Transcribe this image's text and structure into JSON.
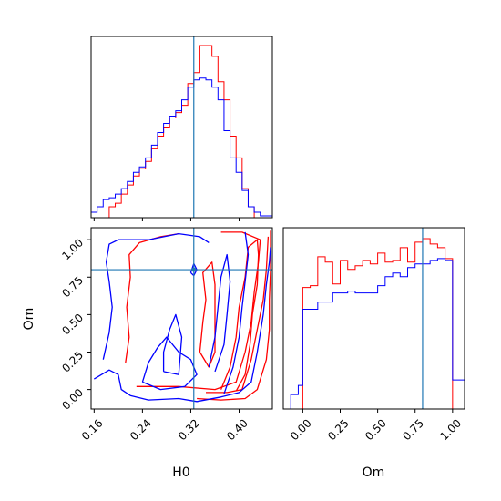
{
  "colors": {
    "series_a": "#ff0000",
    "series_b": "#0000ff",
    "truth": "#1f77b4"
  },
  "chart_data": [
    {
      "type": "histogram",
      "panel": "H0 marginal",
      "xlim": [
        0.155,
        0.455
      ],
      "ylim": [
        0,
        1.0
      ],
      "truth_x": 0.325,
      "x_ticks": [
        0.16,
        0.24,
        0.32,
        0.4
      ],
      "series": [
        {
          "color": "red",
          "edges": [
            0.155,
            0.165,
            0.175,
            0.185,
            0.195,
            0.205,
            0.215,
            0.225,
            0.235,
            0.245,
            0.255,
            0.265,
            0.275,
            0.285,
            0.295,
            0.305,
            0.315,
            0.325,
            0.335,
            0.345,
            0.355,
            0.365,
            0.375,
            0.385,
            0.395,
            0.405,
            0.415,
            0.425,
            0.435,
            0.445,
            0.455
          ],
          "values": [
            0,
            0,
            0,
            0.06,
            0.08,
            0.13,
            0.18,
            0.23,
            0.27,
            0.31,
            0.38,
            0.45,
            0.5,
            0.55,
            0.58,
            0.62,
            0.74,
            0.8,
            0.95,
            0.95,
            0.89,
            0.75,
            0.65,
            0.45,
            0.33,
            0.16,
            0.06,
            0,
            0,
            0
          ]
        },
        {
          "color": "blue",
          "edges": [
            0.155,
            0.165,
            0.175,
            0.185,
            0.195,
            0.205,
            0.215,
            0.225,
            0.235,
            0.245,
            0.255,
            0.265,
            0.275,
            0.285,
            0.295,
            0.305,
            0.315,
            0.325,
            0.335,
            0.345,
            0.355,
            0.365,
            0.375,
            0.385,
            0.395,
            0.405,
            0.415,
            0.425,
            0.435,
            0.445,
            0.455
          ],
          "values": [
            0.03,
            0.06,
            0.1,
            0.11,
            0.13,
            0.16,
            0.2,
            0.25,
            0.28,
            0.33,
            0.4,
            0.47,
            0.52,
            0.56,
            0.59,
            0.65,
            0.72,
            0.76,
            0.77,
            0.76,
            0.72,
            0.65,
            0.48,
            0.33,
            0.25,
            0.15,
            0.06,
            0.03,
            0.01,
            0.01
          ]
        }
      ]
    },
    {
      "type": "contour",
      "panel": "H0 vs Om",
      "xlabel": "H0",
      "ylabel": "Om",
      "xlim": [
        0.155,
        0.455
      ],
      "ylim": [
        -0.13,
        1.08
      ],
      "truth_x": 0.325,
      "truth_y": 0.8,
      "x_ticks": [
        0.16,
        0.24,
        0.32,
        0.4
      ],
      "y_ticks": [
        0.0,
        0.25,
        0.5,
        0.75,
        1.0
      ],
      "x_tick_labels": [
        "0.16",
        "0.24",
        "0.32",
        "0.40"
      ],
      "y_tick_labels": [
        "0.00",
        "0.25",
        "0.50",
        "0.75",
        "1.00"
      ],
      "contours": [
        {
          "color": "red",
          "points": [
            [
              0.33,
              -0.06
            ],
            [
              0.37,
              -0.07
            ],
            [
              0.41,
              -0.06
            ],
            [
              0.43,
              0.0
            ],
            [
              0.445,
              0.2
            ],
            [
              0.45,
              0.4
            ],
            [
              0.45,
              0.6
            ],
            [
              0.452,
              0.8
            ],
            [
              0.452,
              1.06
            ]
          ]
        },
        {
          "color": "red",
          "points": [
            [
              0.345,
              -0.02
            ],
            [
              0.38,
              -0.02
            ],
            [
              0.405,
              0.0
            ],
            [
              0.42,
              0.2
            ],
            [
              0.43,
              0.4
            ],
            [
              0.44,
              0.6
            ],
            [
              0.445,
              0.8
            ],
            [
              0.448,
              1.02
            ]
          ]
        },
        {
          "color": "red",
          "points": [
            [
              0.23,
              0.02
            ],
            [
              0.3,
              0.02
            ],
            [
              0.36,
              0.0
            ],
            [
              0.395,
              0.05
            ],
            [
              0.41,
              0.25
            ],
            [
              0.42,
              0.45
            ],
            [
              0.425,
              0.65
            ],
            [
              0.432,
              0.85
            ],
            [
              0.435,
              1.0
            ],
            [
              0.405,
              1.05
            ],
            [
              0.37,
              1.05
            ]
          ]
        },
        {
          "color": "red",
          "points": [
            [
              0.212,
              0.18
            ],
            [
              0.218,
              0.35
            ],
            [
              0.214,
              0.55
            ],
            [
              0.22,
              0.75
            ],
            [
              0.218,
              0.9
            ],
            [
              0.235,
              0.98
            ],
            [
              0.27,
              1.02
            ],
            [
              0.3,
              1.04
            ]
          ]
        },
        {
          "color": "red",
          "points": [
            [
              0.335,
              0.25
            ],
            [
              0.34,
              0.45
            ],
            [
              0.345,
              0.6
            ],
            [
              0.34,
              0.78
            ],
            [
              0.355,
              0.85
            ],
            [
              0.36,
              0.7
            ],
            [
              0.36,
              0.45
            ],
            [
              0.36,
              0.25
            ],
            [
              0.35,
              0.15
            ],
            [
              0.335,
              0.25
            ]
          ]
        },
        {
          "color": "red",
          "points": [
            [
              0.37,
              0.0
            ],
            [
              0.385,
              0.15
            ],
            [
              0.395,
              0.35
            ],
            [
              0.4,
              0.55
            ],
            [
              0.41,
              0.75
            ],
            [
              0.415,
              0.95
            ],
            [
              0.43,
              1.0
            ],
            [
              0.432,
              0.9
            ],
            [
              0.43,
              0.7
            ],
            [
              0.422,
              0.5
            ],
            [
              0.418,
              0.3
            ],
            [
              0.41,
              0.1
            ],
            [
              0.395,
              -0.01
            ]
          ]
        },
        {
          "color": "blue",
          "points": [
            [
              0.16,
              0.07
            ],
            [
              0.185,
              0.13
            ],
            [
              0.2,
              0.1
            ],
            [
              0.205,
              0.0
            ],
            [
              0.22,
              -0.04
            ],
            [
              0.25,
              -0.07
            ],
            [
              0.3,
              -0.06
            ],
            [
              0.33,
              -0.08
            ],
            [
              0.37,
              -0.05
            ],
            [
              0.4,
              -0.02
            ],
            [
              0.42,
              0.05
            ],
            [
              0.43,
              0.25
            ],
            [
              0.44,
              0.5
            ],
            [
              0.445,
              0.7
            ],
            [
              0.45,
              0.85
            ],
            [
              0.452,
              0.95
            ]
          ]
        },
        {
          "color": "blue",
          "points": [
            [
              0.175,
              0.2
            ],
            [
              0.185,
              0.38
            ],
            [
              0.19,
              0.55
            ],
            [
              0.185,
              0.72
            ],
            [
              0.18,
              0.85
            ],
            [
              0.185,
              0.97
            ],
            [
              0.2,
              1.0
            ],
            [
              0.25,
              1.0
            ],
            [
              0.3,
              1.04
            ],
            [
              0.335,
              1.02
            ],
            [
              0.35,
              0.98
            ]
          ]
        },
        {
          "color": "blue",
          "points": [
            [
              0.375,
              -0.03
            ],
            [
              0.39,
              0.15
            ],
            [
              0.4,
              0.35
            ],
            [
              0.405,
              0.55
            ],
            [
              0.41,
              0.72
            ],
            [
              0.415,
              0.9
            ],
            [
              0.41,
              1.05
            ]
          ]
        },
        {
          "color": "blue",
          "points": [
            [
              0.24,
              0.05
            ],
            [
              0.27,
              0.0
            ],
            [
              0.31,
              0.02
            ],
            [
              0.33,
              0.1
            ],
            [
              0.32,
              0.2
            ],
            [
              0.3,
              0.25
            ],
            [
              0.28,
              0.35
            ],
            [
              0.265,
              0.28
            ],
            [
              0.25,
              0.18
            ],
            [
              0.24,
              0.05
            ]
          ]
        },
        {
          "color": "blue",
          "points": [
            [
              0.275,
              0.12
            ],
            [
              0.3,
              0.1
            ],
            [
              0.305,
              0.35
            ],
            [
              0.295,
              0.5
            ],
            [
              0.285,
              0.4
            ],
            [
              0.275,
              0.25
            ],
            [
              0.275,
              0.12
            ]
          ]
        },
        {
          "color": "blue",
          "points": [
            [
              0.35,
              0.15
            ],
            [
              0.36,
              0.35
            ],
            [
              0.365,
              0.55
            ],
            [
              0.37,
              0.75
            ],
            [
              0.38,
              0.9
            ],
            [
              0.385,
              0.72
            ],
            [
              0.38,
              0.5
            ],
            [
              0.375,
              0.3
            ],
            [
              0.36,
              0.12
            ]
          ]
        },
        {
          "color": "blue",
          "points": [
            [
              0.32,
              0.78
            ],
            [
              0.325,
              0.84
            ],
            [
              0.33,
              0.8
            ],
            [
              0.325,
              0.76
            ],
            [
              0.32,
              0.78
            ]
          ]
        }
      ]
    },
    {
      "type": "histogram",
      "panel": "Om marginal",
      "xlabel": "Om",
      "xlim": [
        -0.13,
        1.08
      ],
      "ylim": [
        0,
        1.0
      ],
      "truth_x": 0.8,
      "x_ticks": [
        0.0,
        0.25,
        0.5,
        0.75,
        1.0
      ],
      "x_tick_labels": [
        "0.00",
        "0.25",
        "0.50",
        "0.75",
        "1.00"
      ],
      "series": [
        {
          "color": "red",
          "edges": [
            -0.13,
            -0.08,
            -0.03,
            0.0,
            0.05,
            0.1,
            0.15,
            0.2,
            0.25,
            0.3,
            0.35,
            0.4,
            0.45,
            0.5,
            0.55,
            0.6,
            0.65,
            0.7,
            0.75,
            0.8,
            0.85,
            0.9,
            0.95,
            1.0,
            1.08
          ],
          "values": [
            0,
            0,
            0,
            0.67,
            0.68,
            0.84,
            0.81,
            0.69,
            0.82,
            0.77,
            0.79,
            0.82,
            0.8,
            0.86,
            0.81,
            0.82,
            0.89,
            0.81,
            0.92,
            0.94,
            0.91,
            0.89,
            0.83,
            0
          ]
        },
        {
          "color": "blue",
          "edges": [
            -0.13,
            -0.08,
            -0.03,
            0.0,
            0.05,
            0.1,
            0.15,
            0.2,
            0.25,
            0.3,
            0.35,
            0.4,
            0.45,
            0.5,
            0.55,
            0.6,
            0.65,
            0.7,
            0.75,
            0.8,
            0.85,
            0.9,
            0.95,
            1.0,
            1.08
          ],
          "values": [
            0,
            0.08,
            0.13,
            0.55,
            0.55,
            0.59,
            0.59,
            0.64,
            0.64,
            0.65,
            0.64,
            0.64,
            0.64,
            0.68,
            0.73,
            0.75,
            0.73,
            0.78,
            0.8,
            0.8,
            0.82,
            0.83,
            0.82,
            0.16
          ]
        }
      ]
    }
  ]
}
